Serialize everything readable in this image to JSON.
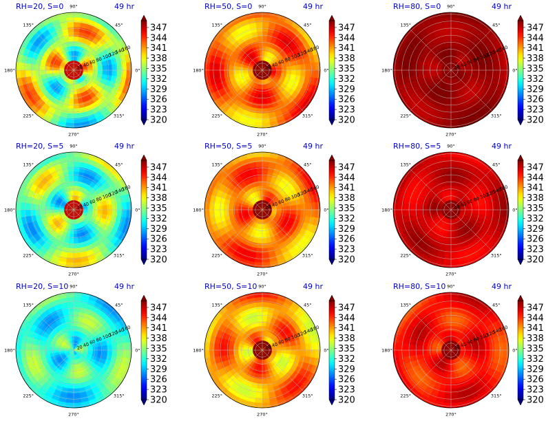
{
  "chart_data": [
    {
      "type": "heatmap",
      "projection": "polar",
      "title_left": "RH=20, S=0",
      "title_right": "49 hr",
      "field_level": 0.55,
      "variability": 0.55,
      "eye": "warm"
    },
    {
      "type": "heatmap",
      "projection": "polar",
      "title_left": "RH=50, S=0",
      "title_right": "49 hr",
      "field_level": 0.76,
      "variability": 0.3,
      "eye": "dark"
    },
    {
      "type": "heatmap",
      "projection": "polar",
      "title_left": "RH=80, S=0",
      "title_right": "49 hr",
      "field_level": 0.97,
      "variability": 0.08,
      "eye": "dark"
    },
    {
      "type": "heatmap",
      "projection": "polar",
      "title_left": "RH=20, S=5",
      "title_right": "49 hr",
      "field_level": 0.48,
      "variability": 0.45,
      "eye": "warm"
    },
    {
      "type": "heatmap",
      "projection": "polar",
      "title_left": "RH=50, S=5",
      "title_right": "49 hr",
      "field_level": 0.75,
      "variability": 0.28,
      "eye": "dark"
    },
    {
      "type": "heatmap",
      "projection": "polar",
      "title_left": "RH=80, S=5",
      "title_right": "49 hr",
      "field_level": 0.92,
      "variability": 0.12,
      "eye": "dark"
    },
    {
      "type": "heatmap",
      "projection": "polar",
      "title_left": "RH=20, S=10",
      "title_right": "49 hr",
      "field_level": 0.42,
      "variability": 0.32,
      "eye": "none"
    },
    {
      "type": "heatmap",
      "projection": "polar",
      "title_left": "RH=50, S=10",
      "title_right": "49 hr",
      "field_level": 0.72,
      "variability": 0.3,
      "eye": "dark"
    },
    {
      "type": "heatmap",
      "projection": "polar",
      "title_left": "RH=80, S=10",
      "title_right": "49 hr",
      "field_level": 0.86,
      "variability": 0.18,
      "eye": "dark"
    }
  ],
  "angle_labels": [
    "0°",
    "45°",
    "90°",
    "135°",
    "180°",
    "225°",
    "270°",
    "315°"
  ],
  "radial_labels": [
    "20",
    "40",
    "60",
    "80",
    "100",
    "120",
    "140",
    "160"
  ],
  "colorbar": {
    "ticks": [
      "320",
      "323",
      "326",
      "329",
      "332",
      "335",
      "338",
      "341",
      "344",
      "347"
    ],
    "range": [
      320,
      349
    ],
    "colormap": "jet"
  }
}
